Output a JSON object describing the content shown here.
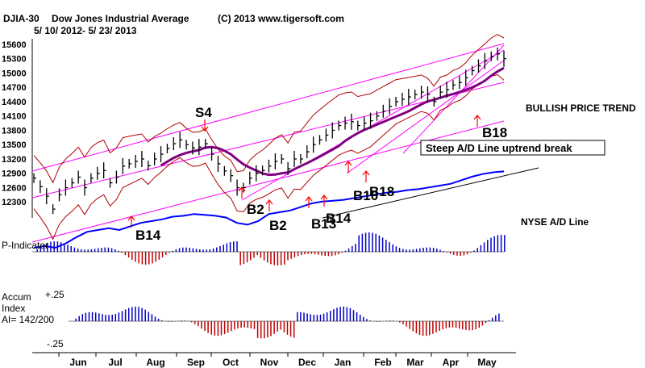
{
  "header": {
    "symbol": "DJIA-30",
    "name": "Dow Jones Industrial Average",
    "copyright": "(C) 2013 www.tigersoft.com",
    "date_range": "5/ 10/ 2012- 5/ 23/ 2013"
  },
  "colors": {
    "price": "#000000",
    "channel": "#ff00ff",
    "band": "#b00000",
    "avg": "#800080",
    "ad_line": "#0000ff",
    "pind": "#0000c8",
    "pind_neg": "#c00000",
    "signal": "#ff0000"
  },
  "chart_data": {
    "type": "line",
    "title": "Dow Jones Industrial Average",
    "y_ticks": [
      "15600",
      "15300",
      "15000",
      "14700",
      "14400",
      "14100",
      "13800",
      "13500",
      "13200",
      "12900",
      "12600",
      "12300"
    ],
    "ylim": [
      12000,
      15650
    ],
    "x_ticks": [
      "Jun",
      "Jul",
      "Aug",
      "Sep",
      "Oct",
      "Nov",
      "Dec",
      "Jan",
      "Feb",
      "Mar",
      "Apr",
      "May"
    ],
    "series": [
      {
        "name": "DJIA close",
        "values": [
          12800,
          12620,
          12420,
          12150,
          12450,
          12600,
          12700,
          12820,
          12600,
          12800,
          12900,
          12960,
          12700,
          12820,
          13050,
          13100,
          13150,
          13200,
          13060,
          13200,
          13300,
          13420,
          13520,
          13600,
          13500,
          13430,
          13450,
          13520,
          13300,
          13100,
          12950,
          12850,
          12600,
          12600,
          12800,
          12900,
          12960,
          13050,
          13150,
          13200,
          13000,
          13200,
          13200,
          13350,
          13500,
          13600,
          13700,
          13800,
          13900,
          13950,
          13980,
          13900,
          13950,
          14000,
          14100,
          14200,
          14300,
          14400,
          14450,
          14500,
          14550,
          14600,
          14550,
          14400,
          14600,
          14650,
          14750,
          14800,
          14900,
          15050,
          15150,
          15250,
          15350,
          15400,
          15300
        ]
      },
      {
        "name": "A/D Line",
        "values": [
          0.1,
          0.12,
          0.1,
          0.15,
          0.22,
          0.28,
          0.3,
          0.32,
          0.3,
          0.34,
          0.38,
          0.4,
          0.42,
          0.45,
          0.46,
          0.48,
          0.47,
          0.46,
          0.44,
          0.38,
          0.36,
          0.4,
          0.48,
          0.5,
          0.52,
          0.56,
          0.6,
          0.62,
          0.63,
          0.64,
          0.66,
          0.68,
          0.7,
          0.72,
          0.73,
          0.75,
          0.76,
          0.78,
          0.8,
          0.82,
          0.86,
          0.9,
          0.93,
          0.95,
          0.96
        ]
      }
    ],
    "labels": {
      "trend": "BULLISH PRICE TREND",
      "ad_break": "Steep A/D Line uptrend break",
      "nyse_ad": "NYSE A/D Line",
      "pind": "P-Indicator",
      "accum": "Accum",
      "index": "Index",
      "ai": "AI= 142/200",
      "accum_hi": "+.25",
      "accum_lo": "-.25"
    },
    "signals": [
      "S4",
      "B14",
      "B2",
      "B2",
      "B13",
      "B14",
      "B10",
      "B18",
      "B18"
    ]
  }
}
